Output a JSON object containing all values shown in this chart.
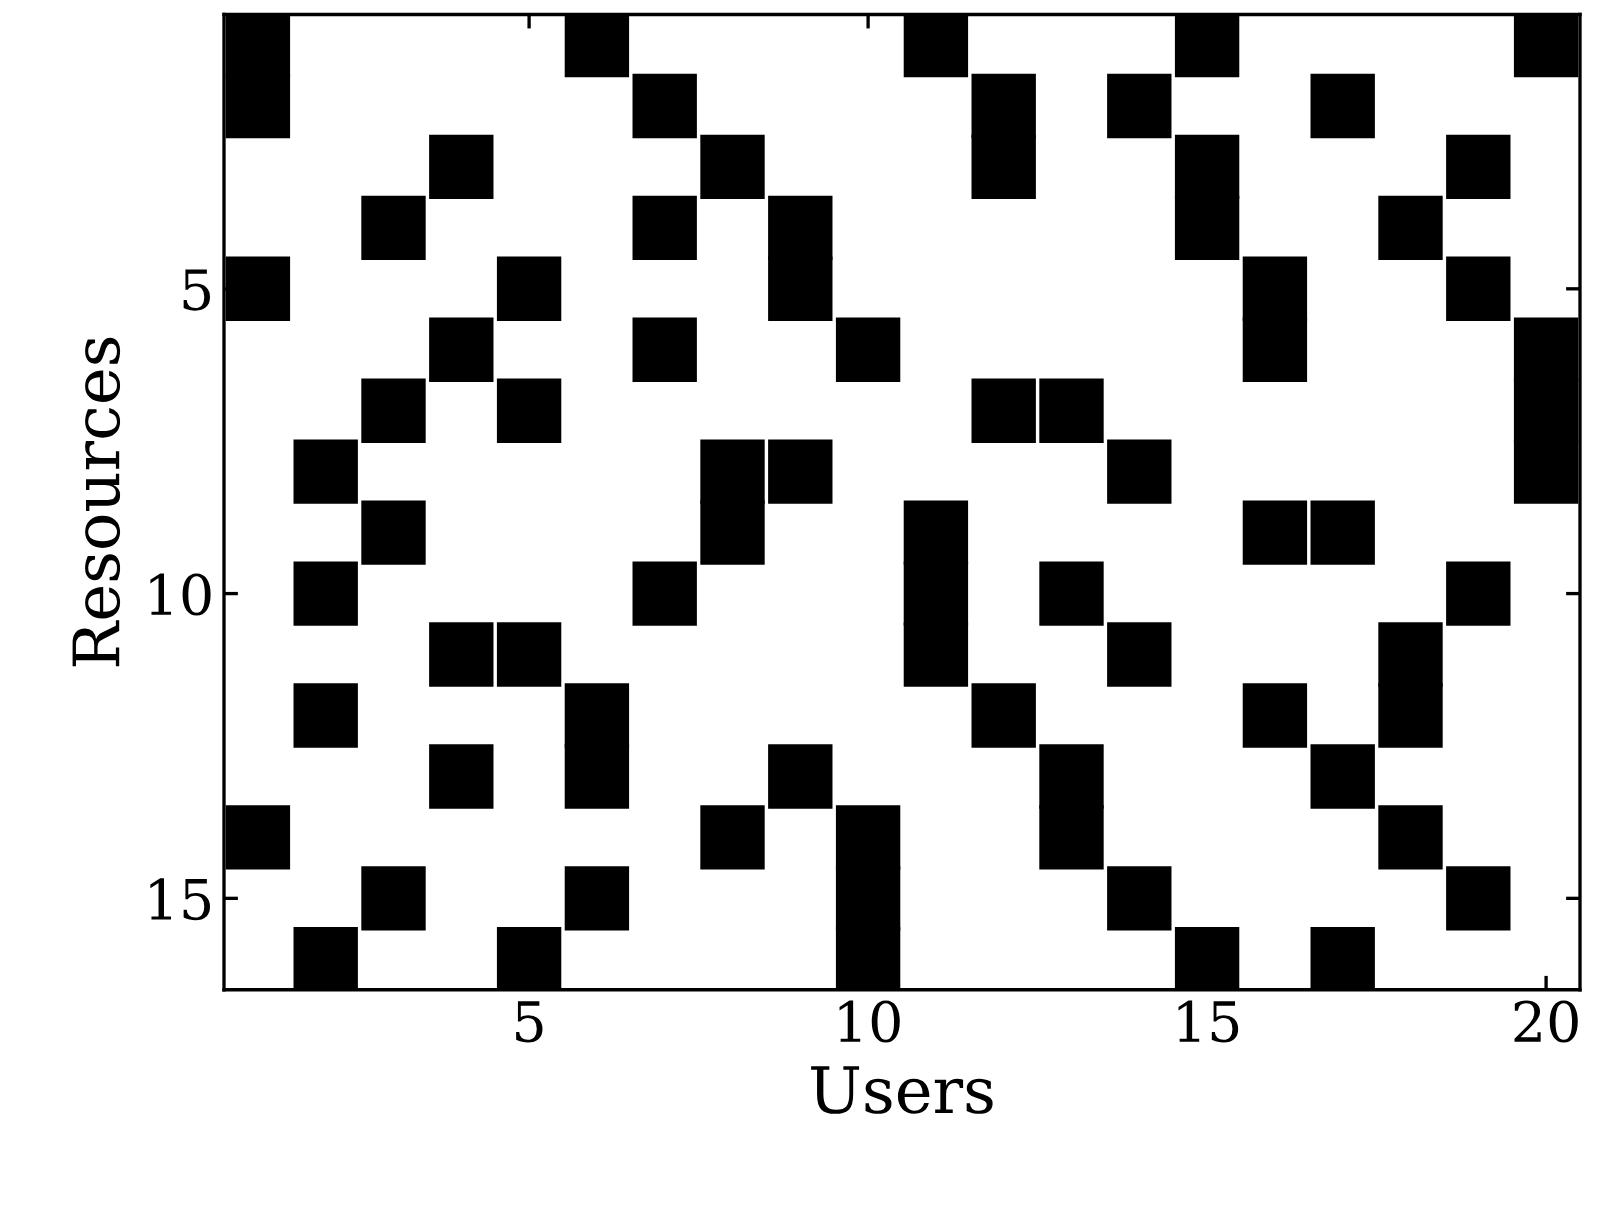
{
  "chart_data": {
    "type": "scatter",
    "xlabel": "Users",
    "ylabel": "Resources",
    "xlim": [
      0.5,
      20.5
    ],
    "xticks": [
      5,
      10,
      15,
      20
    ],
    "ylim": [
      16.5,
      0.5
    ],
    "yticks": [
      5,
      10,
      15
    ],
    "marker": "square",
    "grid": false,
    "series": [
      {
        "color": "#000000",
        "x": [
          1,
          6,
          11,
          15,
          20,
          1,
          7,
          12,
          14,
          17,
          4,
          8,
          12,
          15,
          19,
          3,
          7,
          9,
          15,
          18,
          1,
          5,
          9,
          16,
          19,
          4,
          7,
          10,
          16,
          20,
          3,
          5,
          12,
          13,
          20,
          2,
          8,
          9,
          14,
          20,
          3,
          8,
          11,
          16,
          17,
          2,
          7,
          11,
          13,
          19,
          4,
          5,
          11,
          14,
          18,
          2,
          6,
          12,
          16,
          18,
          4,
          6,
          9,
          13,
          17,
          1,
          8,
          10,
          13,
          18,
          3,
          6,
          10,
          14,
          19,
          2,
          5,
          10,
          15,
          17
        ],
        "values": [
          1,
          1,
          1,
          1,
          1,
          2,
          2,
          2,
          2,
          2,
          3,
          3,
          3,
          3,
          3,
          4,
          4,
          4,
          4,
          4,
          5,
          5,
          5,
          5,
          5,
          6,
          6,
          6,
          6,
          6,
          7,
          7,
          7,
          7,
          7,
          8,
          8,
          8,
          8,
          8,
          9,
          9,
          9,
          9,
          9,
          10,
          10,
          10,
          10,
          10,
          11,
          11,
          11,
          11,
          11,
          12,
          12,
          12,
          12,
          12,
          13,
          13,
          13,
          13,
          13,
          14,
          14,
          14,
          14,
          14,
          15,
          15,
          15,
          15,
          15,
          16,
          16,
          16,
          16,
          16
        ]
      }
    ]
  }
}
